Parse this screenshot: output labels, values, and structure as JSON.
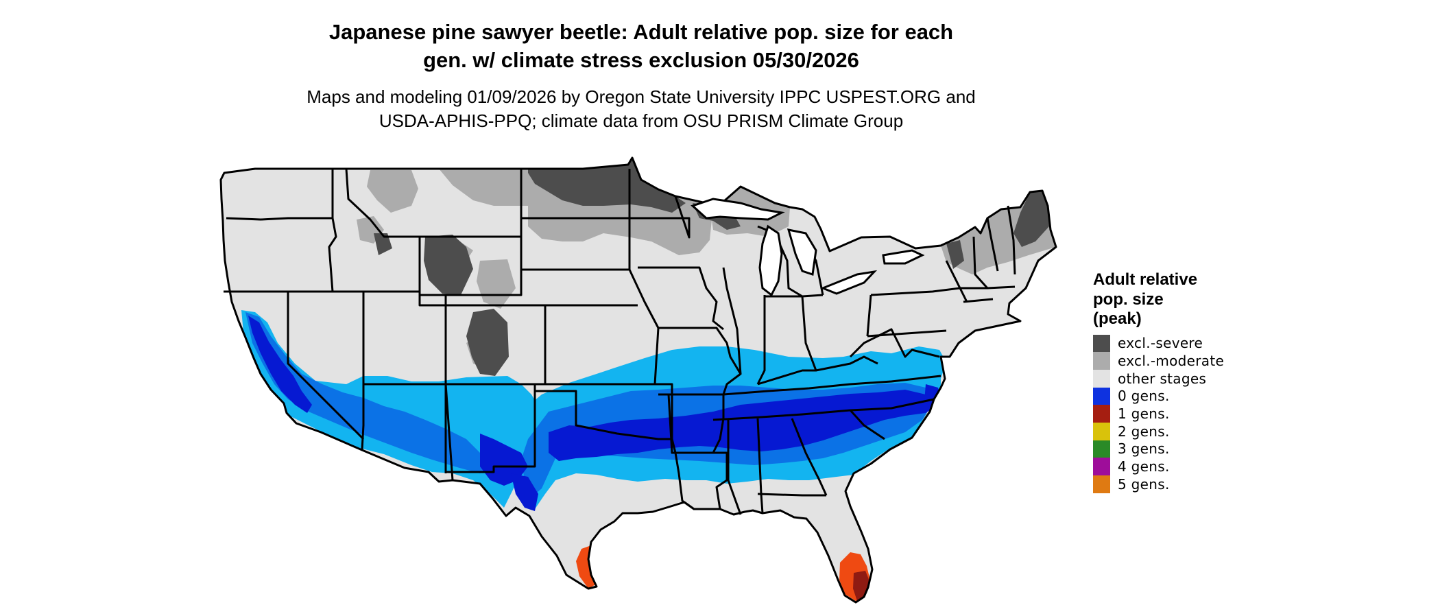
{
  "title": {
    "line1": "Japanese pine sawyer beetle: Adult relative pop. size for each",
    "line2": "gen. w/ climate stress exclusion 05/30/2026"
  },
  "subtitle": {
    "line1": "Maps and modeling 01/09/2026 by Oregon State University IPPC USPEST.ORG and",
    "line2": "USDA-APHIS-PPQ; climate data from OSU PRISM Climate Group"
  },
  "legend": {
    "title_lines": [
      "Adult relative",
      "pop. size",
      "(peak)"
    ],
    "items": [
      {
        "label": "excl.-severe",
        "color": "#4d4d4d"
      },
      {
        "label": "excl.-moderate",
        "color": "#acacac"
      },
      {
        "label": "other stages",
        "color": "#e3e3e3"
      },
      {
        "label": "0 gens.",
        "color": "#0e32e0"
      },
      {
        "label": "1 gens.",
        "color": "#a51e11"
      },
      {
        "label": "2 gens.",
        "color": "#d9c20b"
      },
      {
        "label": "3 gens.",
        "color": "#2a8a27"
      },
      {
        "label": "4 gens.",
        "color": "#9e0d9a"
      },
      {
        "label": "5 gens.",
        "color": "#df7a12"
      }
    ]
  },
  "map": {
    "region": "Contiguous United States",
    "fill_colors": {
      "land": "#e3e3e3",
      "excl_severe": "#4d4d4d",
      "excl_moderate": "#acacac",
      "light_blue": "#13b4f0",
      "mid_blue": "#0b72e6",
      "deep_blue": "#0619d2",
      "orange_red": "#ef4a12",
      "dark_red": "#8f1b12",
      "border": "#000000",
      "background": "#ffffff"
    }
  }
}
